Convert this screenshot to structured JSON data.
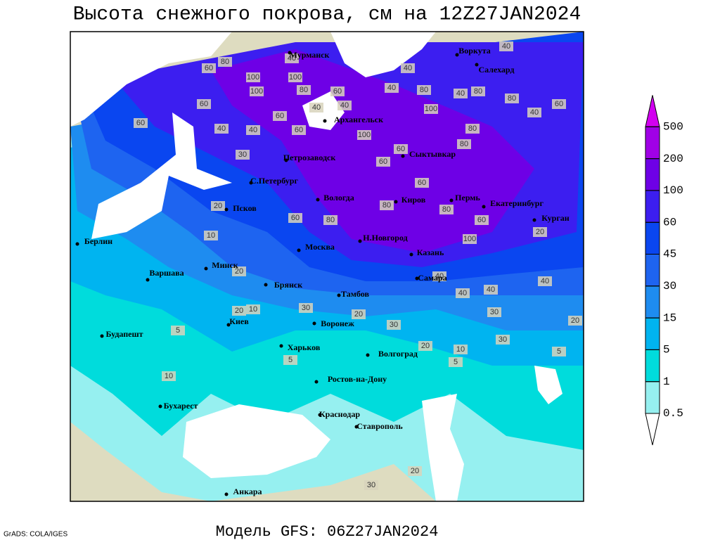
{
  "title": "Высота снежного покрова, см на 12Z27JAN2024",
  "footer": "Модель GFS: 06Z27JAN2024",
  "credit": "GrADS: COLA/IGES",
  "colorbar": {
    "levels": [
      0.5,
      1,
      5,
      15,
      30,
      45,
      60,
      100,
      200,
      500
    ],
    "colors": [
      "#ffffff",
      "#96f0f0",
      "#00dcdc",
      "#00b4f0",
      "#1e8cf0",
      "#1e64f0",
      "#0a46f0",
      "#3c1ef0",
      "#6e00e6",
      "#a000e6",
      "#d200f0"
    ]
  },
  "cities": [
    "Мурманск",
    "Воркута",
    "Салехард",
    "Архангельск",
    "Сыктывкар",
    "Петрозаводск",
    "С.Петербург",
    "Вологда",
    "Киров",
    "Пермь",
    "Екатеринбург",
    "Курган",
    "Псков",
    "Берлин",
    "Н.Новгород",
    "Москва",
    "Казань",
    "Минск",
    "Варшава",
    "Брянск",
    "Самара",
    "Тамбов",
    "Киев",
    "Воронеж",
    "Будапешт",
    "Харьков",
    "Волгоград",
    "Ростов-на-Дону",
    "Бухарест",
    "Краснодар",
    "Ставрополь",
    "Анкара"
  ],
  "contour_labels": [
    60,
    80,
    100,
    100,
    40,
    80,
    60,
    60,
    40,
    100,
    60,
    40,
    100,
    80,
    40,
    40,
    40,
    40,
    80,
    40,
    60,
    60,
    30,
    80,
    40,
    60,
    60,
    40,
    100,
    60,
    80,
    80,
    20,
    10,
    60,
    80,
    80,
    80,
    60,
    30,
    20,
    10,
    30,
    40,
    30,
    20,
    30,
    20,
    20,
    10,
    5,
    5,
    5,
    10,
    20,
    5,
    40,
    20,
    60,
    40,
    100,
    40,
    20,
    30
  ]
}
